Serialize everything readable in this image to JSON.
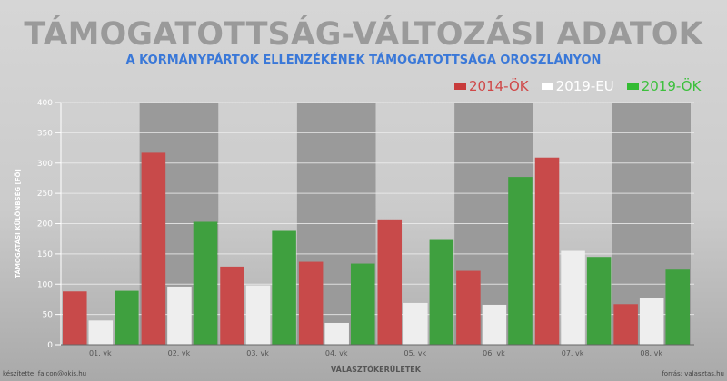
{
  "chart_data": {
    "type": "bar",
    "title": "TÁMOGATOTTSÁG-VÁLTOZÁSI ADATOK",
    "subtitle": "A KORMÁNYPÁRTOK ELLENZÉKÉNEK TÁMOGATOTTSÁGA OROSZLÁNYON",
    "xlabel": "VÁLASZTÓKERÜLETEK",
    "ylabel": "TÁMOGATÁSI KÜLÖNBSÉG [FŐ]",
    "ylim": [
      0,
      400
    ],
    "yticks": [
      "0",
      "50",
      "100",
      "150",
      "200",
      "250",
      "300",
      "350",
      "400"
    ],
    "grid": true,
    "legend_position": "top-right",
    "categories": [
      "01. vk",
      "02. vk",
      "03. vk",
      "04. vk",
      "05. vk",
      "06. vk",
      "07. vk",
      "08. vk"
    ],
    "series": [
      {
        "name": "2014-ÖK",
        "color": "#c84a4a",
        "values": [
          88,
          317,
          129,
          137,
          207,
          122,
          309,
          67
        ]
      },
      {
        "name": "2019-EU",
        "color": "#eeeeee",
        "values": [
          40,
          96,
          98,
          36,
          69,
          66,
          155,
          77
        ]
      },
      {
        "name": "2019-ÖK",
        "color": "#3fa03f",
        "values": [
          89,
          203,
          188,
          134,
          173,
          277,
          145,
          124
        ]
      }
    ],
    "legend_text_colors": [
      "#d04848",
      "#ffffff",
      "#3cc03c"
    ]
  },
  "credits": {
    "left": "készítette: falcon@okis.hu",
    "right": "forrás: valasztas.hu"
  }
}
